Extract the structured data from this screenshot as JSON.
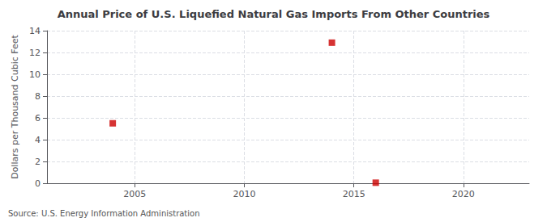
{
  "chart_data": {
    "type": "scatter",
    "title": "Annual Price of U.S. Liquefied Natural Gas Imports From Other Countries",
    "ylabel": "Dollars per Thousand Cubic Feet",
    "source": "Source: U.S. Energy Information Administration",
    "x": [
      2004,
      2014,
      2016
    ],
    "values": [
      5.5,
      12.9,
      0.05
    ],
    "color": "#cc0000",
    "marker": "square",
    "xlim": [
      2001,
      2023
    ],
    "xticks": [
      2005,
      2010,
      2015,
      2020
    ],
    "ylim": [
      0,
      14
    ],
    "yticks": [
      0,
      2,
      4,
      6,
      8,
      10,
      12,
      14
    ],
    "grid": true
  }
}
